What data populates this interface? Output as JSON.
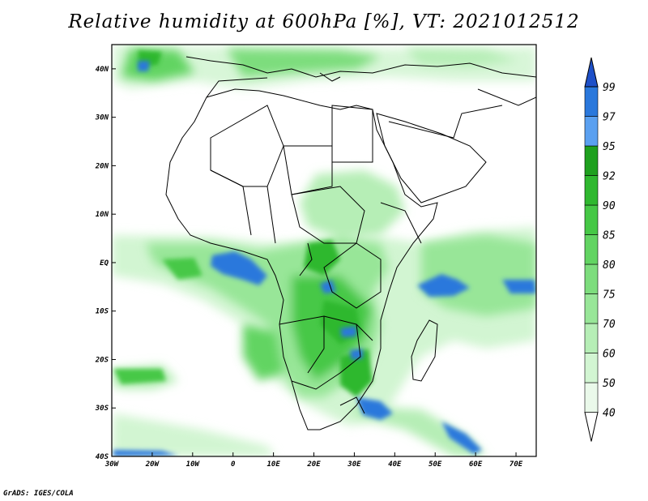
{
  "title": "Relative humidity at 600hPa [%], VT: 2021012512",
  "credit": "GrADS: IGES/COLA",
  "map": {
    "lon_range": [
      -30,
      75
    ],
    "lat_range": [
      -40,
      45
    ],
    "x_ticks": [
      "30W",
      "20W",
      "10W",
      "0",
      "10E",
      "20E",
      "30E",
      "40E",
      "50E",
      "60E",
      "70E"
    ],
    "y_ticks": [
      "40N",
      "30N",
      "20N",
      "10N",
      "EQ",
      "10S",
      "20S",
      "30S",
      "40S"
    ]
  },
  "colorbar": {
    "levels": [
      "40",
      "50",
      "60",
      "70",
      "75",
      "80",
      "85",
      "90",
      "92",
      "95",
      "97",
      "99"
    ],
    "colors": [
      "#eaf9ea",
      "#d2f5d2",
      "#b6eeb6",
      "#98e698",
      "#7ddd7d",
      "#62d462",
      "#46c846",
      "#2fb82f",
      "#1ea01e",
      "#5aa0f0",
      "#2a78dc",
      "#1e50c8"
    ]
  }
}
